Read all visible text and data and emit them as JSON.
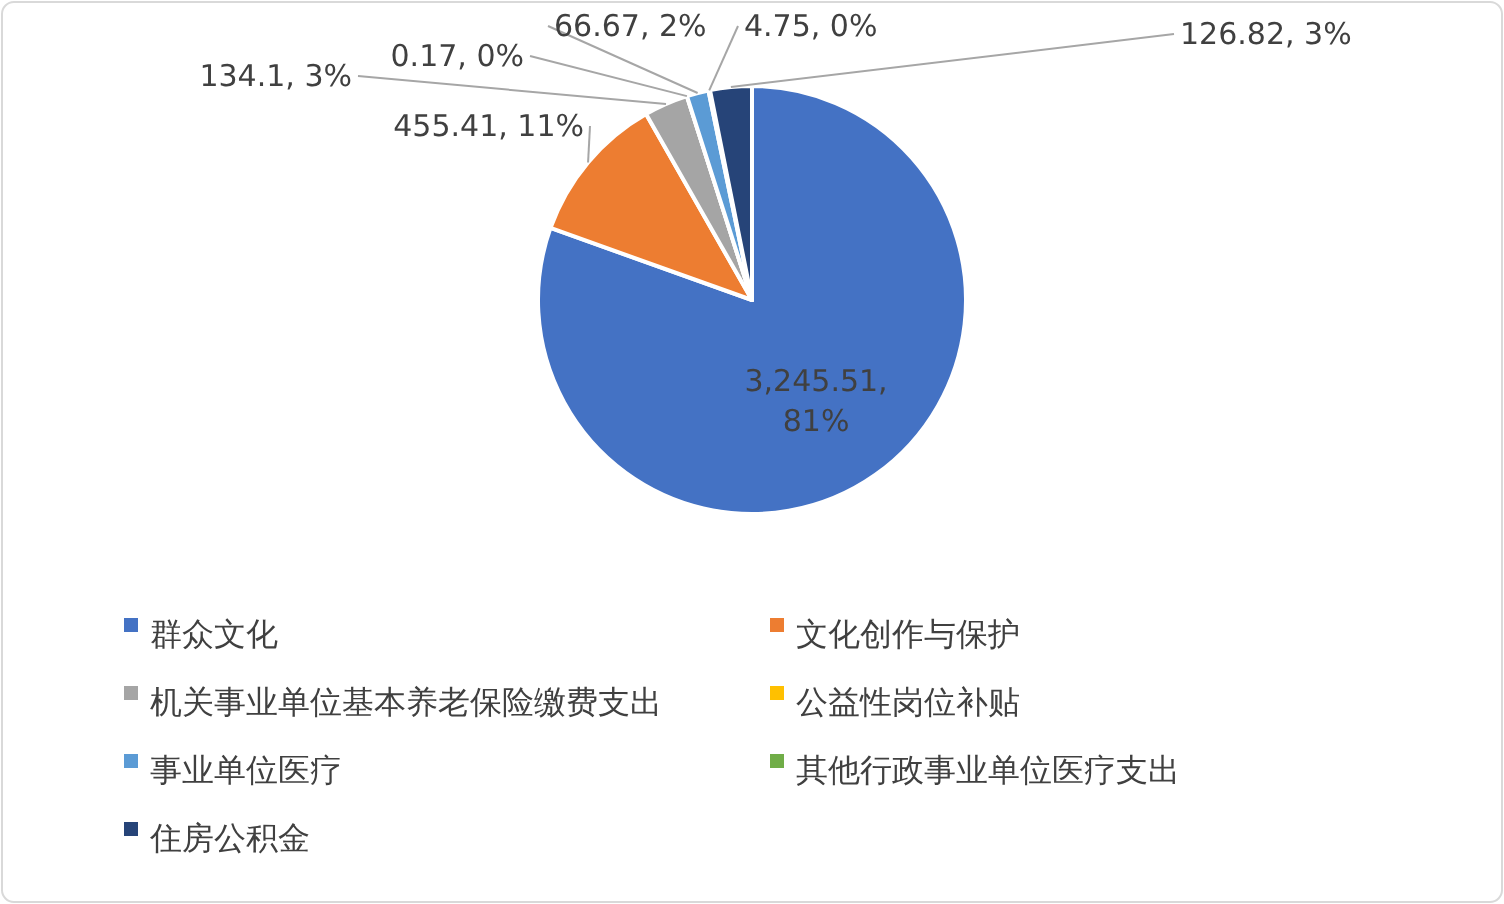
{
  "chart_data": {
    "type": "pie",
    "categories": [
      "群众文化",
      "文化创作与保护",
      "机关事业单位基本养老保险缴费支出",
      "公益性岗位补贴",
      "事业单位医疗",
      "其他行政事业单位医疗支出",
      "住房公积金"
    ],
    "values": [
      3245.51,
      455.41,
      134.1,
      0.17,
      66.67,
      4.75,
      126.82
    ],
    "colors": [
      "#4472c4",
      "#ed7d31",
      "#a5a5a5",
      "#ffc000",
      "#5b9bd5",
      "#70ad47",
      "#264478"
    ],
    "value_labels": [
      "3,245.51, 81%",
      "455.41, 11%",
      "134.1, 3%",
      "0.17, 0%",
      "66.67, 2%",
      "4.75, 0%",
      "126.82, 3%"
    ],
    "legend": "bottom"
  }
}
